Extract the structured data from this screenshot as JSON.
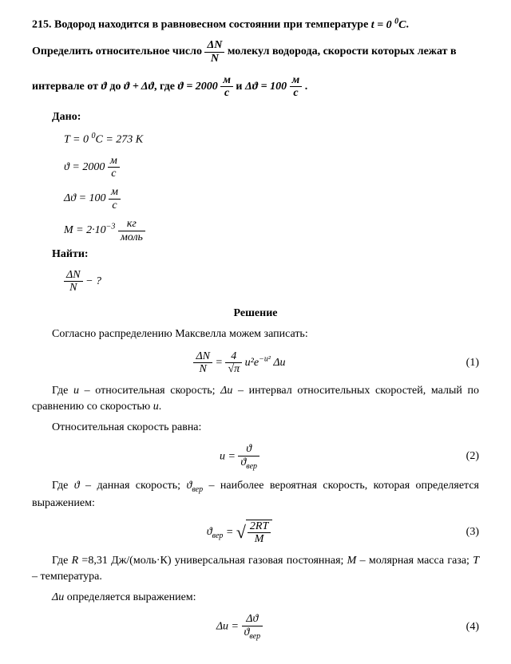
{
  "problem": {
    "number": "215.",
    "text1": "Водород находится в равновесном состоянии при температуре",
    "temp_expr": "t = 0 °C",
    "text2": "Определить относительное число",
    "frac_dn_n": {
      "num": "ΔN",
      "den": "N"
    },
    "text3": "молекул водорода, скорости которых лежат в",
    "text4": "интервале от",
    "theta": "ϑ",
    "text5": "до",
    "theta_plus": "ϑ + Δϑ",
    "text6": ", где",
    "theta_val": {
      "var": "ϑ = 2000",
      "unit_num": "м",
      "unit_den": "с"
    },
    "text7": "и",
    "dtheta_val": {
      "var": "Δϑ = 100",
      "unit_num": "м",
      "unit_den": "с"
    },
    "period": "."
  },
  "given": {
    "label": "Дано:",
    "T": "T = 0 °C = 273 К",
    "theta": {
      "var": "ϑ = 2000",
      "unit_num": "м",
      "unit_den": "с"
    },
    "dtheta": {
      "var": "Δϑ = 100",
      "unit_num": "м",
      "unit_den": "с"
    },
    "M": {
      "var": "M = 2·10",
      "exp": "−3",
      "unit_num": "кг",
      "unit_den": "моль"
    }
  },
  "find": {
    "label": "Найти:",
    "expr": {
      "num": "ΔN",
      "den": "N",
      "suffix": " − ?"
    }
  },
  "solution": {
    "title": "Решение",
    "p1": "Согласно распределению Максвелла можем записать:",
    "eq1": {
      "lhs_num": "ΔN",
      "lhs_den": "N",
      "four": "4",
      "sqrt_pi": "π",
      "rhs": "u²e",
      "exp": "−u²",
      "tail": " Δu",
      "num": "(1)"
    },
    "p2a": "Где ",
    "p2_u": "u",
    "p2b": " – относительная скорость; ",
    "p2_du": "Δu",
    "p2c": " – интервал относительных скоростей, малый по сравнению со скоростью ",
    "p2_u2": "u",
    "p2d": ".",
    "p3": "Относительная скорость равна:",
    "eq2": {
      "lhs": "u = ",
      "num": "ϑ",
      "den": "ϑ",
      "den_sub": "вер",
      "n": "(2)"
    },
    "p4a": "Где ",
    "p4_t": "ϑ",
    "p4b": " – данная скорость; ",
    "p4_tver": "ϑ",
    "p4_sub": "вер",
    "p4c": " – наиболее вероятная скорость, которая определяется выражением:",
    "eq3": {
      "lhs": "ϑ",
      "lhs_sub": "вер",
      "eq": " = ",
      "sqrt_num": "2RT",
      "sqrt_den": "M",
      "n": "(3)"
    },
    "p5a": "Где ",
    "p5_R": "R",
    "p5b": " =8,31 Дж/(моль·К) универсальная газовая постоянная; ",
    "p5_M": "M",
    "p5c": " – молярная масса газа; ",
    "p5_T": "T",
    "p5d": " – температура.",
    "p6a": "Δu",
    "p6b": " определяется выражением:",
    "eq4": {
      "lhs": "Δu = ",
      "num": "Δϑ",
      "den": "ϑ",
      "den_sub": "вер",
      "n": "(4)"
    }
  }
}
